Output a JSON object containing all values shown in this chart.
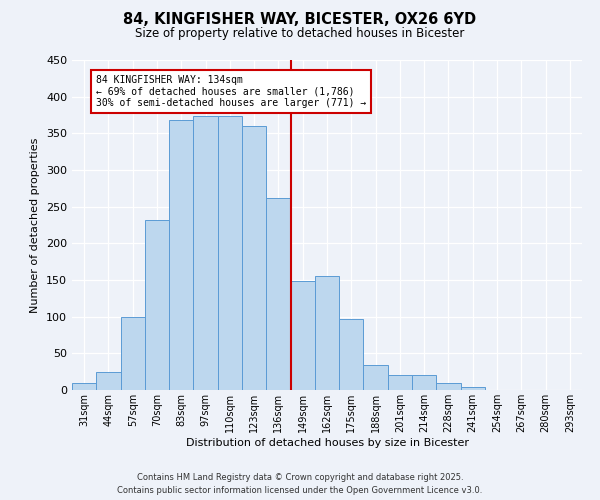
{
  "title": "84, KINGFISHER WAY, BICESTER, OX26 6YD",
  "subtitle": "Size of property relative to detached houses in Bicester",
  "xlabel": "Distribution of detached houses by size in Bicester",
  "ylabel": "Number of detached properties",
  "bar_labels": [
    "31sqm",
    "44sqm",
    "57sqm",
    "70sqm",
    "83sqm",
    "97sqm",
    "110sqm",
    "123sqm",
    "136sqm",
    "149sqm",
    "162sqm",
    "175sqm",
    "188sqm",
    "201sqm",
    "214sqm",
    "228sqm",
    "241sqm",
    "254sqm",
    "267sqm",
    "280sqm",
    "293sqm"
  ],
  "bar_heights": [
    10,
    25,
    100,
    232,
    368,
    374,
    374,
    360,
    262,
    148,
    155,
    97,
    34,
    20,
    20,
    10,
    4,
    0,
    0,
    0,
    0
  ],
  "bar_color": "#bdd7ee",
  "bar_edgecolor": "#5b9bd5",
  "vline_x": 8.5,
  "vline_color": "#cc0000",
  "annotation_title": "84 KINGFISHER WAY: 134sqm",
  "annotation_line1": "← 69% of detached houses are smaller (1,786)",
  "annotation_line2": "30% of semi-detached houses are larger (771) →",
  "annotation_box_edgecolor": "#cc0000",
  "footnote1": "Contains HM Land Registry data © Crown copyright and database right 2025.",
  "footnote2": "Contains public sector information licensed under the Open Government Licence v3.0.",
  "ylim": [
    0,
    450
  ],
  "yticks": [
    0,
    50,
    100,
    150,
    200,
    250,
    300,
    350,
    400,
    450
  ],
  "background_color": "#eef2f9"
}
